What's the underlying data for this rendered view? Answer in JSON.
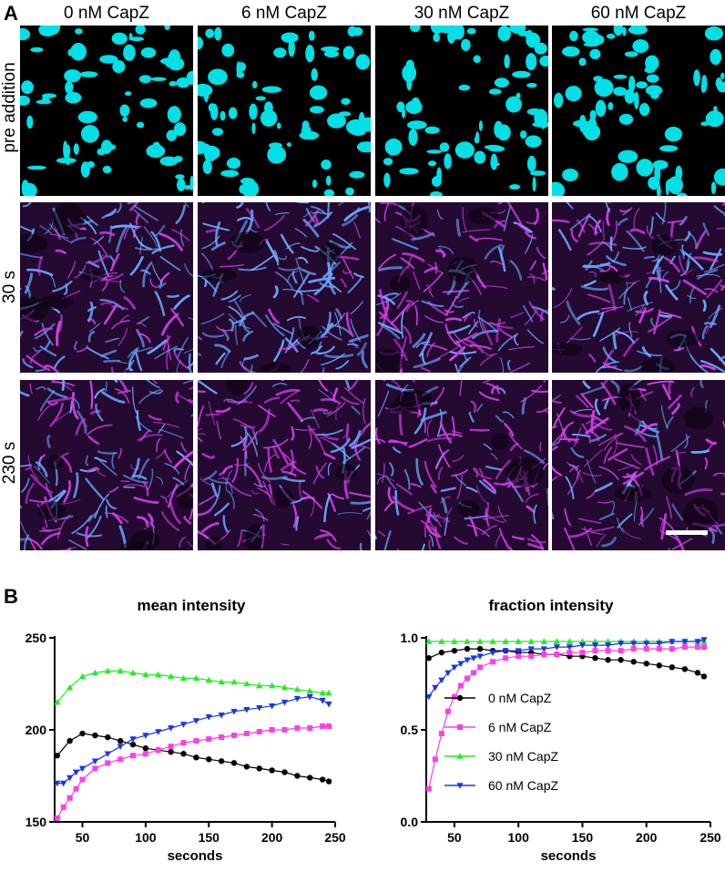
{
  "panel_a": {
    "letter": "A",
    "columns": [
      "0 nM CapZ",
      "6 nM CapZ",
      "30 nM CapZ",
      "60 nM CapZ"
    ],
    "rows": [
      "pre addition",
      "30 s",
      "230 s"
    ],
    "colors": {
      "cyan": "#00e0e6",
      "magenta": "#d040e8",
      "blue": "#6aa8ff",
      "background": "#000000"
    }
  },
  "panel_b": {
    "letter": "B"
  },
  "chart_data": [
    {
      "type": "line",
      "title": "mean intensity",
      "xlabel": "seconds",
      "ylabel": "",
      "xlim": [
        28,
        250
      ],
      "ylim": [
        150,
        250
      ],
      "xticks": [
        "50",
        "100",
        "150",
        "200",
        "250"
      ],
      "yticks": [
        "150",
        "200",
        "250"
      ],
      "series": [
        {
          "name": "0 nM CapZ",
          "color": "#000000",
          "marker": "circle",
          "x": [
            30,
            40,
            50,
            60,
            70,
            80,
            90,
            100,
            110,
            120,
            130,
            140,
            150,
            160,
            170,
            180,
            190,
            200,
            210,
            220,
            230,
            240,
            245
          ],
          "y": [
            186,
            194,
            198,
            197,
            196,
            194,
            192,
            190,
            189,
            188,
            187,
            185,
            184,
            183,
            182,
            180,
            179,
            178,
            177,
            175,
            174,
            173,
            172
          ]
        },
        {
          "name": "6 nM CapZ",
          "color": "#ff3ee6",
          "marker": "square",
          "x": [
            30,
            35,
            40,
            45,
            50,
            60,
            70,
            80,
            90,
            100,
            110,
            120,
            130,
            140,
            150,
            160,
            170,
            180,
            190,
            200,
            210,
            220,
            230,
            240,
            245
          ],
          "y": [
            152,
            158,
            163,
            168,
            173,
            179,
            182,
            184,
            186,
            187,
            189,
            191,
            193,
            194,
            195,
            196,
            197,
            198,
            199,
            200,
            200,
            201,
            201,
            202,
            202
          ]
        },
        {
          "name": "30 nM CapZ",
          "color": "#22ee22",
          "marker": "triangle-up",
          "x": [
            30,
            40,
            50,
            60,
            70,
            80,
            90,
            100,
            110,
            120,
            130,
            140,
            150,
            160,
            170,
            180,
            190,
            200,
            210,
            220,
            230,
            240,
            245
          ],
          "y": [
            215,
            223,
            229,
            231,
            232,
            232,
            231,
            230,
            230,
            229,
            228,
            228,
            227,
            226,
            226,
            225,
            224,
            224,
            223,
            222,
            221,
            220,
            220
          ]
        },
        {
          "name": "60 nM CapZ",
          "color": "#1a35e8",
          "marker": "triangle-down",
          "x": [
            30,
            35,
            40,
            45,
            50,
            60,
            70,
            80,
            90,
            100,
            110,
            120,
            130,
            140,
            150,
            160,
            170,
            180,
            190,
            200,
            210,
            220,
            230,
            240,
            245
          ],
          "y": [
            171,
            171,
            174,
            177,
            179,
            183,
            187,
            191,
            195,
            197,
            199,
            201,
            203,
            205,
            207,
            208,
            210,
            211,
            212,
            213,
            215,
            217,
            218,
            216,
            214
          ]
        }
      ]
    },
    {
      "type": "line",
      "title": "fraction intensity",
      "xlabel": "seconds",
      "ylabel": "",
      "xlim": [
        28,
        250
      ],
      "ylim": [
        0.0,
        1.0
      ],
      "xticks": [
        "50",
        "100",
        "150",
        "200",
        "250"
      ],
      "yticks": [
        "0.0",
        "0.5",
        "1.0"
      ],
      "legend": "center-right",
      "series": [
        {
          "name": "0 nM CapZ",
          "color": "#000000",
          "marker": "circle",
          "x": [
            30,
            40,
            50,
            60,
            70,
            80,
            90,
            100,
            110,
            120,
            130,
            140,
            150,
            160,
            170,
            180,
            190,
            200,
            210,
            220,
            230,
            240,
            245
          ],
          "y": [
            0.89,
            0.92,
            0.93,
            0.94,
            0.94,
            0.93,
            0.93,
            0.92,
            0.92,
            0.91,
            0.91,
            0.9,
            0.9,
            0.89,
            0.88,
            0.88,
            0.87,
            0.86,
            0.85,
            0.84,
            0.83,
            0.81,
            0.79
          ]
        },
        {
          "name": "6 nM CapZ",
          "color": "#ff3ee6",
          "marker": "square",
          "x": [
            30,
            35,
            40,
            45,
            50,
            55,
            60,
            65,
            70,
            80,
            90,
            100,
            110,
            120,
            130,
            140,
            150,
            160,
            170,
            180,
            190,
            200,
            210,
            220,
            230,
            240,
            245
          ],
          "y": [
            0.18,
            0.34,
            0.48,
            0.6,
            0.68,
            0.74,
            0.78,
            0.81,
            0.84,
            0.87,
            0.89,
            0.9,
            0.9,
            0.91,
            0.91,
            0.92,
            0.92,
            0.93,
            0.93,
            0.93,
            0.94,
            0.94,
            0.94,
            0.94,
            0.95,
            0.95,
            0.95
          ]
        },
        {
          "name": "30 nM CapZ",
          "color": "#22ee22",
          "marker": "triangle-up",
          "x": [
            30,
            40,
            50,
            60,
            70,
            80,
            90,
            100,
            110,
            120,
            130,
            140,
            150,
            160,
            170,
            180,
            190,
            200,
            210,
            220,
            230,
            240,
            245
          ],
          "y": [
            0.98,
            0.98,
            0.98,
            0.98,
            0.98,
            0.98,
            0.98,
            0.98,
            0.98,
            0.98,
            0.98,
            0.98,
            0.98,
            0.98,
            0.98,
            0.98,
            0.98,
            0.98,
            0.98,
            0.98,
            0.98,
            0.98,
            0.98
          ]
        },
        {
          "name": "60 nM CapZ",
          "color": "#1a35e8",
          "marker": "triangle-down",
          "x": [
            30,
            35,
            40,
            45,
            50,
            55,
            60,
            65,
            70,
            80,
            90,
            100,
            110,
            120,
            130,
            140,
            150,
            160,
            170,
            180,
            190,
            200,
            210,
            220,
            230,
            240,
            245
          ],
          "y": [
            0.68,
            0.73,
            0.77,
            0.81,
            0.84,
            0.86,
            0.88,
            0.89,
            0.9,
            0.92,
            0.93,
            0.93,
            0.94,
            0.94,
            0.95,
            0.95,
            0.96,
            0.96,
            0.96,
            0.97,
            0.97,
            0.97,
            0.97,
            0.98,
            0.98,
            0.98,
            0.99
          ]
        }
      ]
    }
  ]
}
